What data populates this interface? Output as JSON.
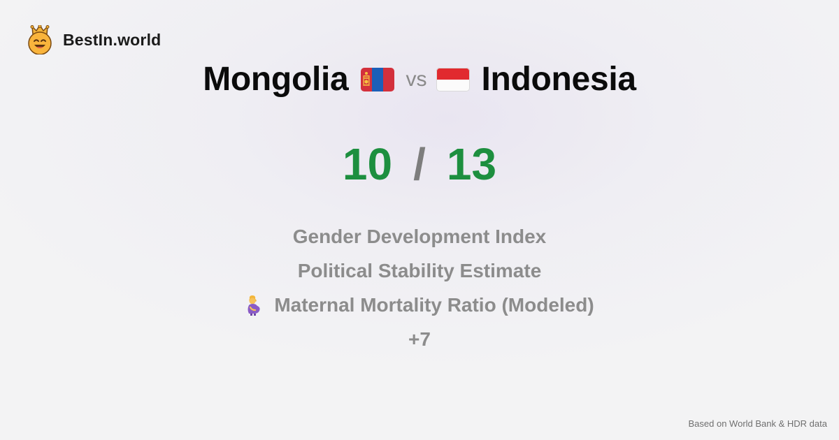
{
  "brand": {
    "name": "BestIn.world",
    "logo_icon": "crowned-smiley-icon"
  },
  "comparison": {
    "left": {
      "name": "Mongolia",
      "flag_icon": "mongolia-flag-icon"
    },
    "separator": "vs",
    "right": {
      "name": "Indonesia",
      "flag_icon": "indonesia-flag-icon"
    }
  },
  "score": {
    "left": "10",
    "separator": "/",
    "right": "13",
    "color": "#1d8f3f"
  },
  "metrics": [
    {
      "label": "Gender Development Index"
    },
    {
      "label": "Political Stability Estimate"
    },
    {
      "label": "Maternal Mortality Ratio (Modeled)",
      "icon": "pregnant-woman-icon"
    }
  ],
  "more": "+7",
  "footer": "Based on World Bank & HDR data"
}
